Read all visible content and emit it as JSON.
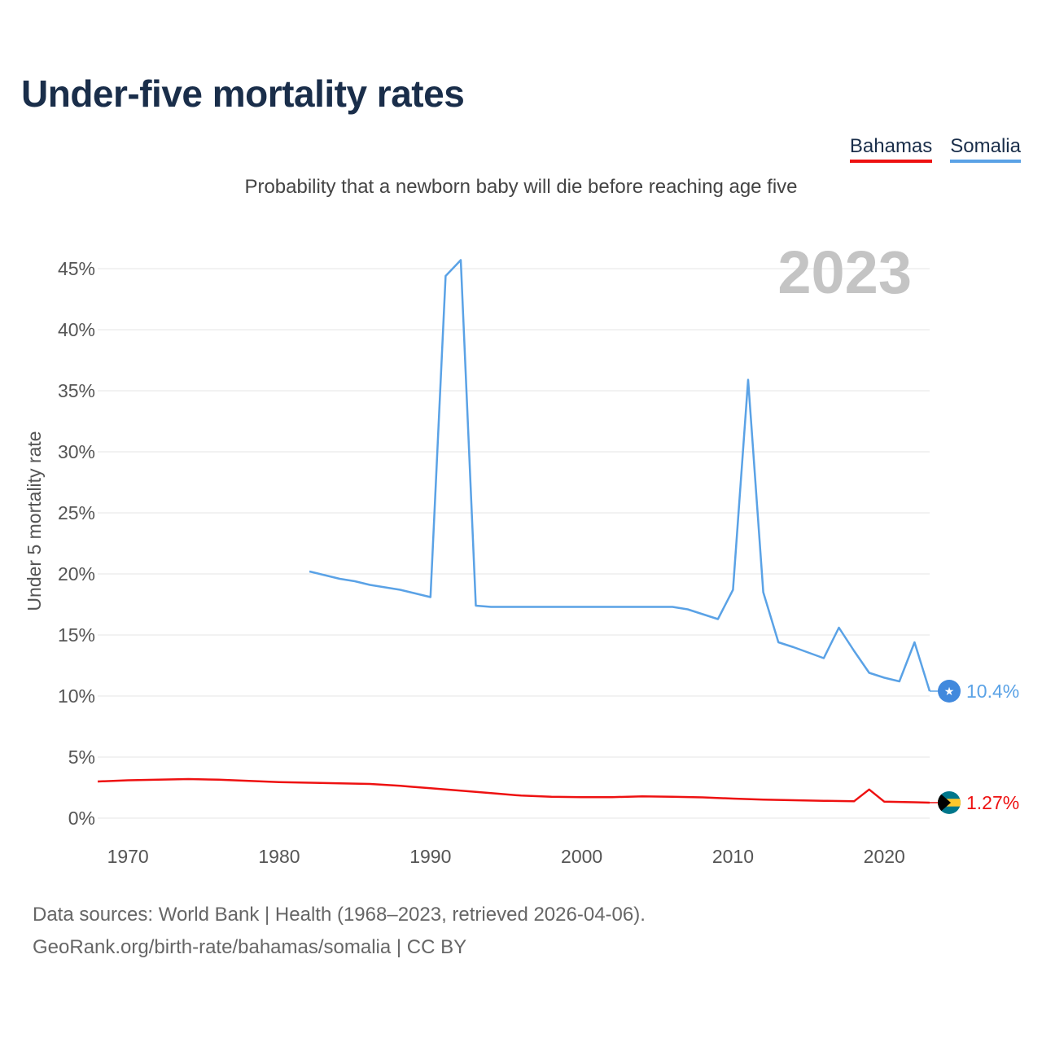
{
  "title": "Under-five mortality rates",
  "subtitle": "Probability that a newborn baby will die before reaching age five",
  "legend": [
    {
      "label": "Bahamas",
      "color": "#ee1111"
    },
    {
      "label": "Somalia",
      "color": "#5aa2e6"
    }
  ],
  "year_watermark": "2023",
  "source": {
    "line1": "Data sources: World Bank | Health (1968–2023, retrieved 2026-04-06).",
    "line2": "GeoRank.org/birth-rate/bahamas/somalia | CC BY"
  },
  "chart_data": {
    "type": "line",
    "title": "Under-five mortality rates",
    "subtitle": "Probability that a newborn baby will die before reaching age five",
    "xlabel": "",
    "ylabel": "Under 5 mortality rate",
    "xlim": [
      1968,
      2023
    ],
    "ylim": [
      0,
      47
    ],
    "x_ticks": [
      1970,
      1980,
      1990,
      2000,
      2010,
      2020
    ],
    "x_tick_labels": [
      "1970",
      "1980",
      "1990",
      "2000",
      "2010",
      "2020"
    ],
    "y_ticks": [
      0,
      5,
      10,
      15,
      20,
      25,
      30,
      35,
      40,
      45
    ],
    "y_tick_labels": [
      "0%",
      "5%",
      "10%",
      "15%",
      "20%",
      "25%",
      "30%",
      "35%",
      "40%",
      "45%"
    ],
    "grid": true,
    "series": [
      {
        "name": "Somalia",
        "color": "#5aa2e6",
        "end_label": "10.4%",
        "x": [
          1982,
          1984,
          1985,
          1986,
          1988,
          1990,
          1991,
          1992,
          1993,
          1994,
          1995,
          2000,
          2005,
          2006,
          2007,
          2009,
          2010,
          2011,
          2012,
          2013,
          2014,
          2016,
          2017,
          2018,
          2019,
          2020,
          2021,
          2022,
          2023
        ],
        "values": [
          20.2,
          19.6,
          19.4,
          19.1,
          18.7,
          18.1,
          44.4,
          45.7,
          17.4,
          17.3,
          17.3,
          17.3,
          17.3,
          17.3,
          17.1,
          16.3,
          18.7,
          35.9,
          18.5,
          14.4,
          14.0,
          13.1,
          15.6,
          13.7,
          11.9,
          11.5,
          11.2,
          14.4,
          10.4
        ]
      },
      {
        "name": "Bahamas",
        "color": "#ee1111",
        "end_label": "1.27%",
        "x": [
          1968,
          1970,
          1972,
          1974,
          1976,
          1978,
          1980,
          1982,
          1984,
          1986,
          1988,
          1990,
          1992,
          1994,
          1996,
          1998,
          2000,
          2002,
          2004,
          2006,
          2008,
          2010,
          2012,
          2014,
          2016,
          2018,
          2019,
          2020,
          2022,
          2023
        ],
        "values": [
          3.0,
          3.1,
          3.15,
          3.2,
          3.15,
          3.05,
          2.95,
          2.9,
          2.85,
          2.8,
          2.65,
          2.45,
          2.25,
          2.05,
          1.85,
          1.75,
          1.72,
          1.72,
          1.78,
          1.75,
          1.7,
          1.6,
          1.52,
          1.47,
          1.42,
          1.38,
          2.35,
          1.35,
          1.3,
          1.27
        ]
      }
    ]
  }
}
